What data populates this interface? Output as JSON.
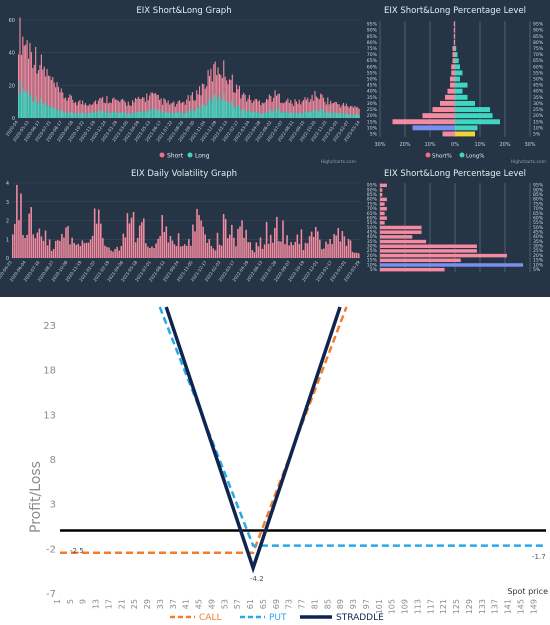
{
  "panels": {
    "short_long": {
      "title": "EIX Short&Long Graph",
      "legend": [
        "Short",
        "Long"
      ],
      "credit": "Highcharts.com",
      "yticks": [
        "0",
        "20",
        "40",
        "60"
      ],
      "xticks": [
        "2020-04",
        "2020-05-13",
        "2020-06-17",
        "2020-07-21",
        "2020-08-17",
        "2020-09-18",
        "2020-10-22",
        "2020-11-19",
        "2020-12-24",
        "2021-01-29",
        "2021-03-05",
        "2021-04-09",
        "2021-05-13",
        "2021-06-17",
        "2021-07-22",
        "2021-08-26",
        "2021-09-30",
        "2021-11-04",
        "2021-12-09",
        "2022-01-13",
        "2022-02-17",
        "2022-03-24",
        "2022-04-28",
        "2022-06-02",
        "2022-07-07",
        "2022-08-11",
        "2022-09-15",
        "2022-10-20",
        "2022-11-23",
        "2023-01-03",
        "2023-02-07",
        "2023-03-14"
      ]
    },
    "pct_level_top": {
      "title": "EIX Short&Long Percentage Level",
      "legend": [
        "Short%",
        "Long%"
      ],
      "credit": "Highcharts.com",
      "levels": [
        "95%",
        "90%",
        "85%",
        "80%",
        "75%",
        "70%",
        "65%",
        "60%",
        "55%",
        "50%",
        "45%",
        "40%",
        "35%",
        "30%",
        "25%",
        "20%",
        "15%",
        "10%",
        "5%"
      ],
      "xticks": [
        "30%",
        "20%",
        "10%",
        "0%",
        "10%",
        "20%",
        "30%"
      ]
    },
    "volatility": {
      "title": "EIX Daily Volatility Graph",
      "yticks": [
        "0",
        "1",
        "2",
        "3",
        "4"
      ],
      "xticks": [
        "2020-04-23",
        "2020-06-04",
        "2020-07-16",
        "2020-08-27",
        "2020-10-08",
        "2020-11-19",
        "2021-01-07",
        "2021-02-19",
        "2021-04-06",
        "2021-05-18",
        "2021-07-01",
        "2021-08-12",
        "2021-09-24",
        "2021-11-05",
        "2021-12-17",
        "2022-02-03",
        "2022-03-17",
        "2022-04-29",
        "2022-06-13",
        "2022-07-26",
        "2022-09-07",
        "2022-10-19",
        "2022-12-01",
        "2023-01-17",
        "2023-03-01",
        "2023-03-29"
      ]
    },
    "pct_level_bottom": {
      "title": "EIX Short&Long Percentage Level",
      "levels": [
        "95%",
        "90%",
        "85%",
        "80%",
        "75%",
        "70%",
        "65%",
        "60%",
        "55%",
        "50%",
        "45%",
        "40%",
        "35%",
        "30%",
        "25%",
        "20%",
        "15%",
        "10%",
        "5%"
      ]
    }
  },
  "colors": {
    "panel_bg": "#253546",
    "short": "#f48ba0",
    "long": "#3fd7c2",
    "blue": "#7b8ff0",
    "yellow": "#f2d23a",
    "call": "#ef7f2e",
    "put": "#28a9e6",
    "straddle": "#0f2550"
  },
  "chart_data": [
    {
      "type": "bar",
      "title": "EIX Short&Long Graph",
      "series": [
        {
          "name": "Short",
          "values_approx_profile": [
            52,
            45,
            38,
            30,
            22,
            15,
            12,
            10,
            9,
            10,
            11,
            12,
            10,
            9,
            10,
            12,
            14,
            11,
            9,
            8,
            10,
            13,
            18,
            25,
            32,
            28,
            20,
            14,
            11,
            10,
            12,
            14,
            11,
            9,
            10,
            12,
            14,
            11,
            9,
            8,
            7,
            6
          ]
        },
        {
          "name": "Long",
          "values_approx_profile": [
            20,
            16,
            12,
            9,
            6,
            4,
            3,
            3,
            3,
            4,
            4,
            4,
            3,
            3,
            3,
            4,
            5,
            4,
            3,
            3,
            3,
            5,
            7,
            10,
            14,
            12,
            8,
            5,
            4,
            3,
            4,
            5,
            4,
            3,
            3,
            4,
            5,
            4,
            3,
            3,
            2,
            2
          ]
        }
      ],
      "ylim": [
        0,
        60
      ]
    },
    {
      "type": "bar",
      "title": "EIX Short&Long Percentage Level",
      "categories": [
        "95%",
        "90%",
        "85%",
        "80%",
        "75%",
        "70%",
        "65%",
        "60%",
        "55%",
        "50%",
        "45%",
        "40%",
        "35%",
        "30%",
        "25%",
        "20%",
        "15%",
        "10%",
        "5%"
      ],
      "series": [
        {
          "name": "Short%",
          "values": [
            0.5,
            0.5,
            0.5,
            0.5,
            1,
            1,
            1,
            1.5,
            1.5,
            2,
            2,
            3,
            4,
            6,
            9,
            13,
            25,
            17,
            5
          ]
        },
        {
          "name": "Long%",
          "values": [
            0,
            0,
            0,
            0,
            0.5,
            1,
            1.5,
            2,
            3,
            2,
            5,
            3,
            5,
            8,
            14,
            15,
            18,
            9,
            8
          ]
        }
      ],
      "xlim": [
        -30,
        30
      ]
    },
    {
      "type": "bar",
      "title": "EIX Daily Volatility Graph",
      "ylim": [
        0,
        4
      ],
      "values_approx_profile": [
        3.6,
        3.4,
        2.8,
        2.2,
        1.6,
        1.2,
        0.8,
        1.0,
        1.9,
        0.9,
        0.7,
        1.2,
        1.8,
        3.8,
        1.1,
        0.6,
        0.9,
        1.7,
        3.2,
        1.0,
        1.9,
        0.7,
        0.8,
        2.4,
        0.9,
        1.3,
        0.9,
        1.0,
        2.4,
        1.5,
        0.8,
        0.9,
        1.5,
        2.9,
        0.7,
        1.9,
        1.3,
        0.6,
        0.9,
        1.8,
        2.3,
        2.0,
        1.0,
        0.6,
        1.4,
        0.8,
        1.5,
        1.3,
        0.9,
        1.1,
        1.4,
        1.1,
        0.8,
        0.5
      ]
    },
    {
      "type": "bar",
      "title": "EIX Short&Long Percentage Level",
      "categories": [
        "95%",
        "90%",
        "85%",
        "80%",
        "75%",
        "70%",
        "65%",
        "60%",
        "55%",
        "50%",
        "45%",
        "40%",
        "35%",
        "30%",
        "25%",
        "20%",
        "15%",
        "10%",
        "5%"
      ],
      "values": [
        3,
        1,
        1,
        3,
        2,
        3,
        2,
        3,
        2,
        18,
        18,
        14,
        20,
        42,
        42,
        55,
        35,
        62,
        28
      ],
      "highlight_level": "10%"
    },
    {
      "type": "line",
      "title": "",
      "xlabel": "Spot price",
      "ylabel": "Profit/Loss",
      "yticks": [
        23,
        18,
        13,
        8,
        3,
        -2,
        -7
      ],
      "xticks": [
        1,
        5,
        9,
        13,
        17,
        21,
        25,
        29,
        33,
        37,
        41,
        45,
        49,
        53,
        57,
        61,
        65,
        69,
        73,
        77,
        81,
        85,
        89,
        93,
        97,
        101,
        105,
        109,
        113,
        117,
        121,
        125,
        129,
        133,
        137,
        141,
        145,
        149
      ],
      "ylim": [
        -7,
        25
      ],
      "xlim": [
        1,
        152
      ],
      "strike": 61,
      "series": [
        {
          "name": "CALL",
          "style": "dashed",
          "points": [
            [
              1,
              -2.5
            ],
            [
              61,
              -2.5
            ],
            [
              90,
              25
            ]
          ]
        },
        {
          "name": "PUT",
          "style": "dashed",
          "points": [
            [
              32,
              25
            ],
            [
              61,
              -1.7
            ],
            [
              152,
              -1.7
            ]
          ]
        },
        {
          "name": "STRADDLE",
          "style": "solid",
          "points": [
            [
              34,
              25
            ],
            [
              61,
              -4.2
            ],
            [
              88,
              25
            ]
          ]
        }
      ],
      "zero_line": 0,
      "annotations": [
        "-2.5",
        "-1.7",
        "-4.2"
      ]
    }
  ],
  "payoff": {
    "ylabel": "Profit/Loss",
    "xlabel": "Spot price",
    "legend": [
      "CALL",
      "PUT",
      "STRADDLE"
    ],
    "labels": {
      "call_level": "-2.5",
      "put_level": "-1.7",
      "min": "-4.2"
    }
  }
}
